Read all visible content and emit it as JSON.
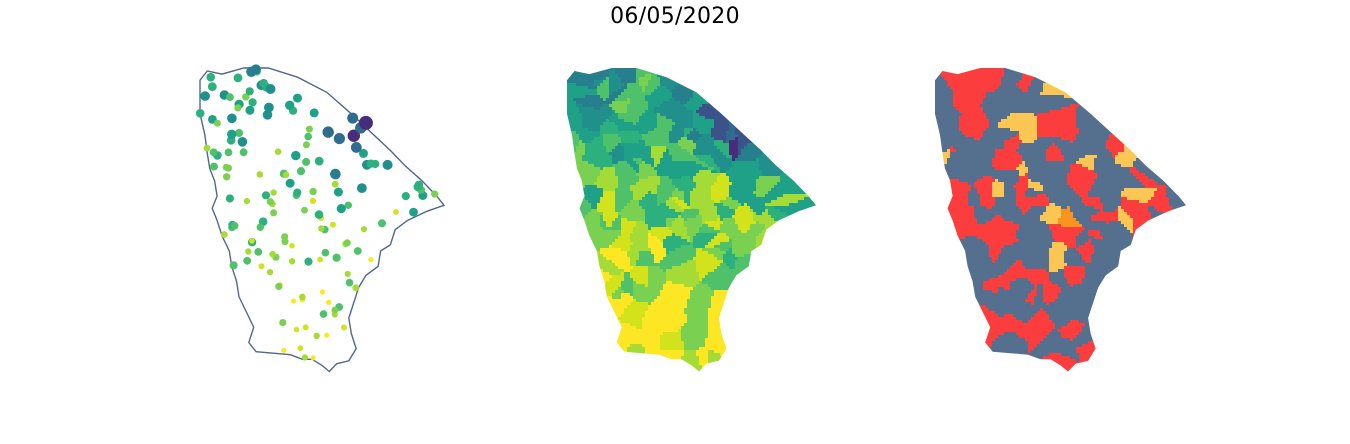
{
  "figure": {
    "title": "06/05/2020"
  },
  "colors": {
    "outline": "#50698a",
    "viridis": [
      "#fde725",
      "#d2e21b",
      "#a5db36",
      "#7ad151",
      "#4fc16b",
      "#2cb17e",
      "#1fa187",
      "#21908d",
      "#277f8e",
      "#2f6c8e",
      "#3b528b",
      "#472d7b"
    ],
    "categories": {
      "gray_blue": "#55708f",
      "red": "#fc3d3d",
      "yellow": "#fbc653",
      "orange": "#f8951f"
    }
  },
  "maps": [
    {
      "id": "points",
      "style": "outline-with-proportional-dots"
    },
    {
      "id": "choropleth",
      "style": "continuous-viridis-fill"
    },
    {
      "id": "categories",
      "style": "categorical-fill"
    }
  ]
}
